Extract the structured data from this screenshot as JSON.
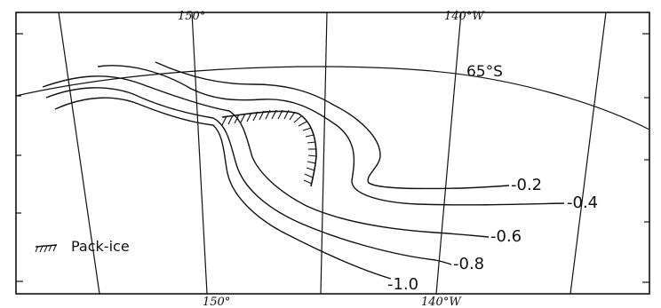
{
  "map": {
    "top_labels": {
      "lon_150": "150°",
      "lon_140w": "140°W"
    },
    "bottom_labels": {
      "lon_150": "150°",
      "lon_140w": "140°W"
    },
    "latitude_label": "65°S",
    "contour_labels": {
      "c02": "-0.2",
      "c04": "-0.4",
      "c06": "-0.6",
      "c08": "-0.8",
      "c10": "-1.0"
    },
    "legend": {
      "label": "Pack-ice",
      "icon": "pack-ice-hatch-icon"
    },
    "colors": {
      "ink": "#111111",
      "background": "#ffffff"
    }
  }
}
